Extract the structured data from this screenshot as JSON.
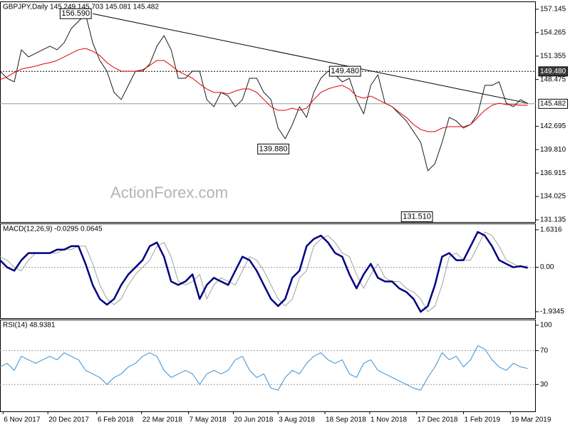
{
  "chart_data": [
    {
      "type": "line",
      "title": "GBPJPY,Daily  145.249 145.703 145.081 145.482",
      "watermark": "ActionForex.com",
      "x": [
        "2017-11-03",
        "2017-11-10",
        "2017-11-17",
        "2017-11-24",
        "2017-12-01",
        "2017-12-08",
        "2017-12-15",
        "2017-12-22",
        "2017-12-29",
        "2018-01-05",
        "2018-01-12",
        "2018-01-19",
        "2018-01-26",
        "2018-02-02",
        "2018-02-09",
        "2018-02-16",
        "2018-02-23",
        "2018-03-02",
        "2018-03-09",
        "2018-03-16",
        "2018-03-23",
        "2018-03-30",
        "2018-04-06",
        "2018-04-13",
        "2018-04-20",
        "2018-04-27",
        "2018-05-04",
        "2018-05-11",
        "2018-05-18",
        "2018-05-25",
        "2018-06-01",
        "2018-06-08",
        "2018-06-15",
        "2018-06-22",
        "2018-06-29",
        "2018-07-06",
        "2018-07-13",
        "2018-07-20",
        "2018-07-27",
        "2018-08-03",
        "2018-08-10",
        "2018-08-17",
        "2018-08-24",
        "2018-08-31",
        "2018-09-07",
        "2018-09-14",
        "2018-09-21",
        "2018-09-28",
        "2018-10-05",
        "2018-10-12",
        "2018-10-19",
        "2018-10-26",
        "2018-11-02",
        "2018-11-09",
        "2018-11-16",
        "2018-11-23",
        "2018-11-30",
        "2018-12-07",
        "2018-12-14",
        "2018-12-21",
        "2018-12-28",
        "2019-01-04",
        "2019-01-11",
        "2019-01-18",
        "2019-01-25",
        "2019-02-01",
        "2019-02-08",
        "2019-02-15",
        "2019-02-22",
        "2019-03-01",
        "2019-03-08",
        "2019-03-15",
        "2019-03-22",
        "2019-03-29",
        "2019-04-05"
      ],
      "series": [
        {
          "color": "#1a1a1a",
          "values": [
            149.5,
            148.62,
            148.18,
            152.14,
            151.26,
            151.7,
            152.14,
            152.58,
            152.14,
            153.02,
            154.77,
            155.65,
            156.53,
            153.02,
            150.82,
            149.5,
            146.87,
            145.99,
            147.75,
            149.5,
            149.5,
            150.38,
            152.58,
            153.89,
            152.14,
            148.62,
            148.62,
            149.5,
            149.5,
            145.99,
            145.11,
            146.87,
            146.43,
            145.11,
            145.99,
            148.62,
            148.62,
            146.87,
            145.99,
            142.47,
            141.15,
            142.91,
            145.11,
            143.79,
            146.87,
            148.62,
            149.5,
            149.06,
            148.18,
            148.62,
            145.99,
            144.23,
            147.75,
            149.06,
            145.55,
            145.11,
            144.23,
            143.35,
            142.03,
            140.71,
            137.2,
            138.08,
            140.71,
            143.79,
            143.35,
            142.47,
            142.91,
            144.23,
            147.75,
            147.75,
            148.18,
            145.55,
            145.11,
            145.99,
            145.48
          ]
        },
        {
          "color": "#e00000",
          "values": [
            148.45,
            148.8,
            149.33,
            149.76,
            149.94,
            150.11,
            150.38,
            150.55,
            150.82,
            151.26,
            151.7,
            152.14,
            152.31,
            151.96,
            151.43,
            150.55,
            149.94,
            149.5,
            149.5,
            149.5,
            149.67,
            150.2,
            150.82,
            150.82,
            150.2,
            149.5,
            149.06,
            148.62,
            147.92,
            147.3,
            146.87,
            146.87,
            146.69,
            147.04,
            147.3,
            147.3,
            146.87,
            145.99,
            145.11,
            144.67,
            144.67,
            144.93,
            144.67,
            144.93,
            145.99,
            146.87,
            147.3,
            147.57,
            147.75,
            147.3,
            146.43,
            146.16,
            146.43,
            145.99,
            145.55,
            145.11,
            144.4,
            143.79,
            142.91,
            142.3,
            142.03,
            142.03,
            142.47,
            142.65,
            142.65,
            142.65,
            142.91,
            143.79,
            144.67,
            145.28,
            145.55,
            145.37,
            145.37,
            145.28,
            145.28
          ]
        }
      ],
      "xlim": [
        "2017-11-03",
        "2019-04-13"
      ],
      "ylim": [
        130.87,
        158.11
      ],
      "yticks": [
        157.145,
        154.265,
        151.355,
        148.475,
        142.695,
        {
          "value": 139.81,
          "label": "139.810"
        },
        136.915,
        134.025,
        131.135
      ],
      "hlines": [
        {
          "value": 149.48,
          "label": "149.480",
          "style": "dotted"
        },
        {
          "value": 145.482,
          "label": "145.482",
          "style": "solid"
        }
      ],
      "annotations": [
        {
          "x": "2018-02-02",
          "value": 156.59,
          "label": "156.590"
        },
        {
          "x": "2018-09-21",
          "value": 149.48,
          "label": "149.480"
        },
        {
          "x": "2018-08-15",
          "value": 139.88,
          "label": "139.880"
        },
        {
          "x": "2019-01-03",
          "value": 131.51,
          "label": "131.510"
        }
      ],
      "trendline": {
        "x": [
          "2018-02-02",
          "2019-04-05"
        ],
        "y": [
          156.59,
          145.55
        ]
      }
    },
    {
      "type": "line",
      "title": "MACD(12,26,9) -0.0295 0.0645",
      "x": [
        "2017-11-03",
        "2017-11-10",
        "2017-11-17",
        "2017-11-24",
        "2017-12-01",
        "2017-12-08",
        "2017-12-15",
        "2017-12-22",
        "2017-12-29",
        "2018-01-05",
        "2018-01-12",
        "2018-01-19",
        "2018-01-26",
        "2018-02-02",
        "2018-02-09",
        "2018-02-16",
        "2018-02-23",
        "2018-03-02",
        "2018-03-09",
        "2018-03-16",
        "2018-03-23",
        "2018-03-30",
        "2018-04-06",
        "2018-04-13",
        "2018-04-20",
        "2018-04-27",
        "2018-05-04",
        "2018-05-11",
        "2018-05-18",
        "2018-05-25",
        "2018-06-01",
        "2018-06-08",
        "2018-06-15",
        "2018-06-22",
        "2018-06-29",
        "2018-07-06",
        "2018-07-13",
        "2018-07-20",
        "2018-07-27",
        "2018-08-03",
        "2018-08-10",
        "2018-08-17",
        "2018-08-24",
        "2018-08-31",
        "2018-09-07",
        "2018-09-14",
        "2018-09-21",
        "2018-09-28",
        "2018-10-05",
        "2018-10-12",
        "2018-10-19",
        "2018-10-26",
        "2018-11-02",
        "2018-11-09",
        "2018-11-16",
        "2018-11-23",
        "2018-11-30",
        "2018-12-07",
        "2018-12-14",
        "2018-12-21",
        "2018-12-28",
        "2019-01-04",
        "2019-01-11",
        "2019-01-18",
        "2019-01-25",
        "2019-02-01",
        "2019-02-08",
        "2019-02-15",
        "2019-02-22",
        "2019-03-01",
        "2019-03-08",
        "2019-03-15",
        "2019-03-22",
        "2019-03-29",
        "2019-04-05"
      ],
      "series": [
        {
          "color": "#a0a0a0",
          "values": [
            0.46,
            0.31,
            0,
            -0.15,
            0.31,
            0.62,
            0.62,
            0.62,
            0.62,
            0.77,
            0.77,
            0.92,
            0.92,
            0.15,
            -0.77,
            -1.38,
            -1.63,
            -1.38,
            -0.77,
            -0.31,
            0,
            0.31,
            0.92,
            1.08,
            0.46,
            -0.62,
            -0.77,
            -0.62,
            -0.31,
            -1.38,
            -0.77,
            -0.46,
            -0.62,
            -0.77,
            -0.15,
            0.46,
            0.31,
            -0.15,
            -0.77,
            -1.38,
            -1.69,
            -1.38,
            -0.46,
            -0.15,
            0.92,
            1.23,
            1.38,
            1.08,
            0.62,
            0.46,
            -0.31,
            -0.92,
            -0.31,
            0.15,
            -0.46,
            -0.62,
            -0.62,
            -0.92,
            -1.08,
            -1.38,
            -1.94,
            -1.69,
            -0.77,
            0.46,
            0.62,
            0.31,
            0.31,
            0.92,
            1.54,
            1.38,
            0.92,
            0.31,
            0.15,
            0,
            0.0645
          ]
        },
        {
          "color": "#000080",
          "values": [
            0.31,
            0,
            -0.15,
            0.31,
            0.62,
            0.62,
            0.62,
            0.62,
            0.77,
            0.77,
            0.92,
            0.92,
            0.15,
            -0.77,
            -1.38,
            -1.63,
            -1.38,
            -0.77,
            -0.31,
            0,
            0.31,
            0.92,
            1.08,
            0.46,
            -0.62,
            -0.77,
            -0.62,
            -0.31,
            -1.38,
            -0.77,
            -0.46,
            -0.62,
            -0.77,
            -0.15,
            0.46,
            0.31,
            -0.15,
            -0.77,
            -1.38,
            -1.69,
            -1.38,
            -0.46,
            -0.15,
            0.92,
            1.23,
            1.38,
            1.08,
            0.62,
            0.46,
            -0.31,
            -0.92,
            -0.31,
            0.15,
            -0.46,
            -0.62,
            -0.62,
            -0.92,
            -1.08,
            -1.38,
            -1.94,
            -1.69,
            -0.77,
            0.46,
            0.62,
            0.31,
            0.31,
            0.92,
            1.54,
            1.38,
            0.92,
            0.31,
            0.15,
            0,
            0.05,
            -0.0295
          ]
        }
      ],
      "xlim": [
        "2017-11-03",
        "2019-04-13"
      ],
      "ylim": [
        -2.215,
        1.909
      ],
      "yticks": [
        1.6316,
        {
          "value": 0,
          "label": "0.00"
        },
        -1.9345
      ],
      "levels": [
        0
      ]
    },
    {
      "type": "line",
      "title": "RSI(14) 48.9381",
      "x": [
        "2017-11-03",
        "2017-11-10",
        "2017-11-17",
        "2017-11-24",
        "2017-12-01",
        "2017-12-08",
        "2017-12-15",
        "2017-12-22",
        "2017-12-29",
        "2018-01-05",
        "2018-01-12",
        "2018-01-19",
        "2018-01-26",
        "2018-02-02",
        "2018-02-09",
        "2018-02-16",
        "2018-02-23",
        "2018-03-02",
        "2018-03-09",
        "2018-03-16",
        "2018-03-23",
        "2018-03-30",
        "2018-04-06",
        "2018-04-13",
        "2018-04-20",
        "2018-04-27",
        "2018-05-04",
        "2018-05-11",
        "2018-05-18",
        "2018-05-25",
        "2018-06-01",
        "2018-06-08",
        "2018-06-15",
        "2018-06-22",
        "2018-06-29",
        "2018-07-06",
        "2018-07-13",
        "2018-07-20",
        "2018-07-27",
        "2018-08-03",
        "2018-08-10",
        "2018-08-17",
        "2018-08-24",
        "2018-08-31",
        "2018-09-07",
        "2018-09-14",
        "2018-09-21",
        "2018-09-28",
        "2018-10-05",
        "2018-10-12",
        "2018-10-19",
        "2018-10-26",
        "2018-11-02",
        "2018-11-09",
        "2018-11-16",
        "2018-11-23",
        "2018-11-30",
        "2018-12-07",
        "2018-12-14",
        "2018-12-21",
        "2018-12-28",
        "2019-01-04",
        "2019-01-11",
        "2019-01-18",
        "2019-01-25",
        "2019-02-01",
        "2019-02-08",
        "2019-02-15",
        "2019-02-22",
        "2019-03-01",
        "2019-03-08",
        "2019-03-15",
        "2019-03-22",
        "2019-03-29",
        "2019-04-05"
      ],
      "series": [
        {
          "color": "#3a8fd0",
          "values": [
            50.8,
            55,
            46.7,
            63.3,
            59.2,
            55,
            59.2,
            63.3,
            59.2,
            67.5,
            63.3,
            59.2,
            46.7,
            42.5,
            38.3,
            30,
            38.3,
            42.5,
            50.8,
            55,
            63.3,
            67.5,
            63.3,
            46.7,
            38.3,
            42.5,
            46.7,
            42.5,
            30,
            42.5,
            46.7,
            42.5,
            46.7,
            59.2,
            63.3,
            46.7,
            38.3,
            42.5,
            25.8,
            23.3,
            38.3,
            46.7,
            42.5,
            55,
            63.3,
            67.5,
            59.2,
            55,
            59.2,
            42.5,
            38.3,
            55,
            59.2,
            46.7,
            42.5,
            38.3,
            34.2,
            30,
            25.8,
            23.3,
            38.3,
            50.8,
            67.5,
            59.2,
            63.3,
            50.8,
            59.2,
            75.8,
            71.7,
            59.2,
            50.8,
            46.7,
            55,
            50.8,
            48.94
          ]
        }
      ],
      "xlim": [
        "2017-11-03",
        "2019-04-13"
      ],
      "ylim": [
        -1.7,
        106.7
      ],
      "yticks": [
        100,
        70,
        30
      ],
      "levels": [
        70,
        30
      ],
      "xticks": [
        {
          "value": "2017-11-06",
          "label": "6 Nov 2017"
        },
        {
          "value": "2017-12-20",
          "label": "20 Dec 2017"
        },
        {
          "value": "2018-02-06",
          "label": "6 Feb 2018"
        },
        {
          "value": "2018-03-22",
          "label": "22 Mar 2018"
        },
        {
          "value": "2018-05-07",
          "label": "7 May 2018"
        },
        {
          "value": "2018-06-20",
          "label": "20 Jun 2018"
        },
        {
          "value": "2018-08-03",
          "label": "3 Aug 2018"
        },
        {
          "value": "2018-09-18",
          "label": "18 Sep 2018"
        },
        {
          "value": "2018-11-01",
          "label": "1 Nov 2018"
        },
        {
          "value": "2018-12-17",
          "label": "17 Dec 2018"
        },
        {
          "value": "2019-02-01",
          "label": "1 Feb 2019"
        },
        {
          "value": "2019-03-19",
          "label": "19 Mar 2019"
        }
      ]
    }
  ]
}
